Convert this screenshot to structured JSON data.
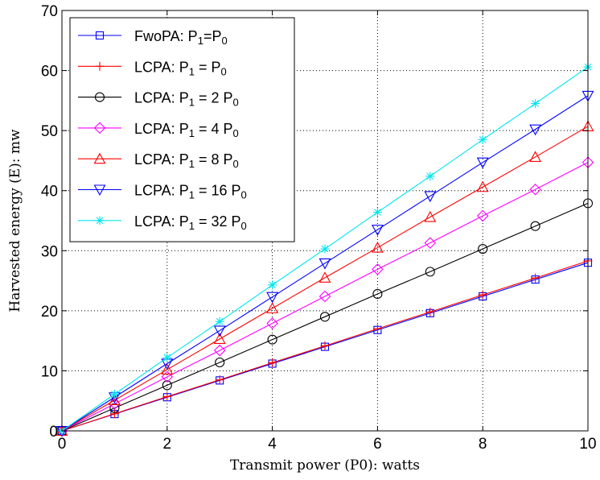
{
  "chart_data": {
    "type": "line",
    "title": "",
    "xlabel": "Transmit power (P0): watts",
    "ylabel": "Harvested energy (E): mw",
    "xlim": [
      0,
      10
    ],
    "ylim": [
      0,
      70
    ],
    "xticks": [
      0,
      2,
      4,
      6,
      8,
      10
    ],
    "yticks": [
      0,
      10,
      20,
      30,
      40,
      50,
      60,
      70
    ],
    "grid": true,
    "legend_position": "top-left",
    "x": [
      0,
      1,
      2,
      3,
      4,
      5,
      6,
      7,
      8,
      9,
      10
    ],
    "series": [
      {
        "name": "FwoPA: P1=P0",
        "legend_parts": [
          "FwoPA: P",
          "1",
          "=P",
          "0"
        ],
        "color": "#0000ff",
        "marker": "square",
        "values": [
          0,
          2.8,
          5.6,
          8.4,
          11.2,
          14.0,
          16.8,
          19.6,
          22.4,
          25.2,
          28.0
        ]
      },
      {
        "name": "LCPA: P1 = P0",
        "legend_parts": [
          "LCPA: P",
          "1",
          " = P",
          "0"
        ],
        "color": "#ff0000",
        "marker": "plus",
        "values": [
          0,
          2.85,
          5.7,
          8.5,
          11.35,
          14.15,
          17.0,
          19.8,
          22.65,
          25.45,
          28.3
        ]
      },
      {
        "name": "LCPA: P1 = 2 P0",
        "legend_parts": [
          "LCPA: P",
          "1",
          " = 2 P",
          "0"
        ],
        "color": "#000000",
        "marker": "circle",
        "values": [
          0,
          3.8,
          7.6,
          11.4,
          15.2,
          19.0,
          22.8,
          26.5,
          30.3,
          34.1,
          37.9
        ]
      },
      {
        "name": "LCPA: P1 = 4 P0",
        "legend_parts": [
          "LCPA: P",
          "1",
          " = 4 P",
          "0"
        ],
        "color": "#ff00ff",
        "marker": "diamond",
        "values": [
          0,
          4.5,
          9.0,
          13.4,
          17.9,
          22.4,
          26.9,
          31.3,
          35.8,
          40.2,
          44.7
        ]
      },
      {
        "name": "LCPA: P1 = 8 P0",
        "legend_parts": [
          "LCPA: P",
          "1",
          " = 8 P",
          "0"
        ],
        "color": "#ff0000",
        "marker": "triangle-up",
        "values": [
          0,
          5.1,
          10.2,
          15.3,
          20.4,
          25.5,
          30.5,
          35.6,
          40.6,
          45.6,
          50.7
        ]
      },
      {
        "name": "LCPA: P1 = 16 P0",
        "legend_parts": [
          "LCPA: P",
          "1",
          " = 16 P",
          "0"
        ],
        "color": "#0000ff",
        "marker": "triangle-down",
        "values": [
          0,
          5.6,
          11.2,
          16.7,
          22.3,
          27.9,
          33.5,
          39.1,
          44.7,
          50.2,
          55.8
        ]
      },
      {
        "name": "LCPA: P1 = 32 P0",
        "legend_parts": [
          "LCPA: P",
          "1",
          " = 32 P",
          "0"
        ],
        "color": "#00e5ee",
        "marker": "star",
        "values": [
          0,
          6.1,
          12.2,
          18.2,
          24.3,
          30.3,
          36.4,
          42.4,
          48.5,
          54.5,
          60.6
        ]
      }
    ]
  }
}
